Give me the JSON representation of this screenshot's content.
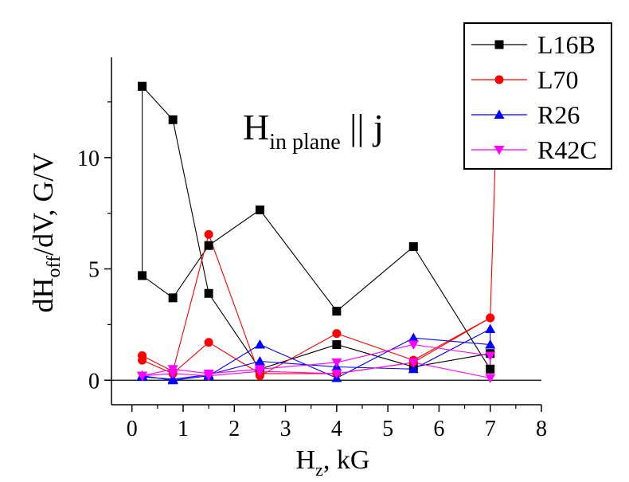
{
  "chart_data": {
    "type": "line",
    "title": "",
    "xlabel": {
      "main": "H",
      "sub": "z",
      "rest": ", kG"
    },
    "ylabel": {
      "pre": "dH",
      "sub": "off",
      "rest": "/dV, G/V"
    },
    "annotation": {
      "main": "H",
      "sub": "in plane",
      "rest": " || j"
    },
    "xlim": [
      -0.4,
      8
    ],
    "ylim": [
      -1.1,
      14.5
    ],
    "x_ticks": [
      "0",
      "1",
      "2",
      "3",
      "4",
      "5",
      "6",
      "7",
      "8"
    ],
    "y_ticks": [
      "0",
      "5",
      "10"
    ],
    "legend_position": "top-right",
    "series": [
      {
        "name": "L16B",
        "color": "#000000",
        "marker": "square",
        "points": [
          [
            0.2,
            13.2
          ],
          [
            0.8,
            11.7
          ],
          [
            1.5,
            3.9
          ],
          [
            2.5,
            0.5
          ],
          [
            4.0,
            1.6
          ],
          [
            5.5,
            0.6
          ],
          [
            7.0,
            1.2
          ],
          [
            7.0,
            0.5
          ],
          [
            5.5,
            6.0
          ],
          [
            4.0,
            3.1
          ],
          [
            2.5,
            7.65
          ],
          [
            1.5,
            6.05
          ],
          [
            0.8,
            3.7
          ],
          [
            0.2,
            4.7
          ],
          [
            0.2,
            13.2
          ]
        ]
      },
      {
        "name": "L70",
        "color": "#ff0000",
        "marker": "circle",
        "points": [
          [
            0.2,
            1.1
          ],
          [
            0.8,
            0.4
          ],
          [
            1.5,
            6.55
          ],
          [
            2.5,
            0.2
          ],
          [
            4.0,
            2.1
          ],
          [
            5.5,
            0.9
          ],
          [
            7.0,
            2.8
          ],
          [
            7.0,
            2.8
          ],
          [
            5.5,
            0.8
          ],
          [
            4.0,
            0.3
          ],
          [
            2.5,
            0.3
          ],
          [
            1.5,
            1.7
          ],
          [
            0.8,
            0.3
          ],
          [
            0.2,
            0.9
          ],
          [
            0.2,
            1.1
          ]
        ]
      },
      {
        "name": "R26",
        "color": "#0000ff",
        "marker": "triangle-up",
        "points": [
          [
            0.2,
            0.2
          ],
          [
            0.8,
            0.0
          ],
          [
            1.5,
            0.2
          ],
          [
            2.5,
            1.6
          ],
          [
            4.0,
            0.1
          ],
          [
            5.5,
            1.9
          ],
          [
            7.0,
            1.6
          ],
          [
            7.0,
            2.3
          ],
          [
            5.5,
            0.5
          ],
          [
            4.0,
            0.6
          ],
          [
            2.5,
            0.85
          ],
          [
            1.5,
            0.25
          ],
          [
            0.8,
            0.05
          ],
          [
            0.2,
            0.15
          ],
          [
            0.2,
            0.2
          ]
        ]
      },
      {
        "name": "R42C",
        "color": "#ff00ff",
        "marker": "triangle-down",
        "points": [
          [
            0.2,
            0.2
          ],
          [
            0.8,
            0.5
          ],
          [
            1.5,
            0.3
          ],
          [
            2.5,
            0.5
          ],
          [
            4.0,
            0.8
          ],
          [
            5.5,
            1.6
          ],
          [
            7.0,
            1.1
          ],
          [
            7.0,
            0.1
          ],
          [
            5.5,
            0.8
          ],
          [
            4.0,
            0.3
          ],
          [
            2.5,
            0.4
          ],
          [
            1.5,
            0.2
          ],
          [
            0.8,
            0.3
          ],
          [
            0.2,
            0.2
          ],
          [
            0.2,
            0.2
          ]
        ]
      }
    ],
    "offscale_segment": {
      "series": "L70",
      "from": [
        7.0,
        2.8
      ],
      "to": [
        7.1,
        10.0
      ]
    }
  }
}
